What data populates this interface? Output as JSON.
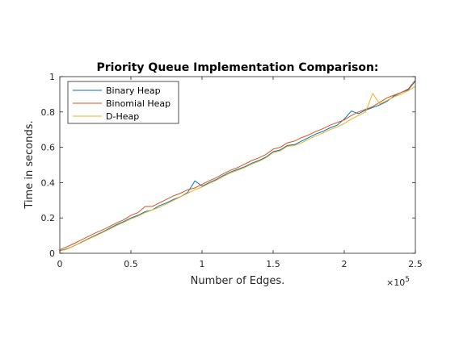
{
  "chart_data": {
    "type": "line",
    "title": "Priority Queue Implementation Comparison:",
    "xlabel": "Number of Edges.",
    "ylabel": "Time in seconds.",
    "x_multiplier_base": "×10",
    "x_multiplier_exp": "5",
    "xlim": [
      0,
      2.5
    ],
    "ylim": [
      0,
      1
    ],
    "xticks": [
      0,
      0.5,
      1,
      1.5,
      2,
      2.5
    ],
    "xtick_labels": [
      "0",
      "0.5",
      "1",
      "1.5",
      "2",
      "2.5"
    ],
    "yticks": [
      0,
      0.2,
      0.4,
      0.6,
      0.8,
      1
    ],
    "ytick_labels": [
      "0",
      "0.2",
      "0.4",
      "0.6",
      "0.8",
      "1"
    ],
    "legend_position": "top-left",
    "grid": false,
    "x": [
      0,
      0.05,
      0.1,
      0.15,
      0.2,
      0.25,
      0.3,
      0.35,
      0.4,
      0.45,
      0.5,
      0.55,
      0.6,
      0.65,
      0.7,
      0.75,
      0.8,
      0.85,
      0.9,
      0.95,
      1.0,
      1.05,
      1.1,
      1.15,
      1.2,
      1.25,
      1.3,
      1.35,
      1.4,
      1.45,
      1.5,
      1.55,
      1.6,
      1.65,
      1.7,
      1.75,
      1.8,
      1.85,
      1.9,
      1.95,
      2.0,
      2.05,
      2.1,
      2.15,
      2.2,
      2.25,
      2.3,
      2.35,
      2.4,
      2.45,
      2.5
    ],
    "series": [
      {
        "name": "Binary Heap",
        "color": "#0072bd",
        "values": [
          0.015,
          0.025,
          0.042,
          0.062,
          0.082,
          0.102,
          0.12,
          0.142,
          0.162,
          0.18,
          0.2,
          0.215,
          0.235,
          0.245,
          0.27,
          0.285,
          0.305,
          0.32,
          0.345,
          0.41,
          0.38,
          0.4,
          0.418,
          0.44,
          0.46,
          0.475,
          0.49,
          0.51,
          0.525,
          0.545,
          0.575,
          0.585,
          0.61,
          0.615,
          0.635,
          0.655,
          0.675,
          0.69,
          0.71,
          0.725,
          0.76,
          0.805,
          0.79,
          0.81,
          0.825,
          0.84,
          0.86,
          0.89,
          0.91,
          0.925,
          0.975
        ]
      },
      {
        "name": "Binomial Heap",
        "color": "#d95319",
        "values": [
          0.02,
          0.037,
          0.055,
          0.075,
          0.095,
          0.115,
          0.132,
          0.152,
          0.172,
          0.19,
          0.215,
          0.23,
          0.265,
          0.265,
          0.285,
          0.305,
          0.325,
          0.34,
          0.36,
          0.37,
          0.39,
          0.41,
          0.428,
          0.45,
          0.47,
          0.485,
          0.505,
          0.525,
          0.54,
          0.56,
          0.59,
          0.6,
          0.625,
          0.635,
          0.655,
          0.67,
          0.69,
          0.705,
          0.725,
          0.74,
          0.755,
          0.78,
          0.8,
          0.815,
          0.83,
          0.855,
          0.88,
          0.895,
          0.91,
          0.93,
          0.98
        ]
      },
      {
        "name": "D-Heap",
        "color": "#edb120",
        "values": [
          0.013,
          0.023,
          0.043,
          0.06,
          0.08,
          0.098,
          0.117,
          0.137,
          0.157,
          0.175,
          0.195,
          0.21,
          0.23,
          0.245,
          0.26,
          0.28,
          0.3,
          0.32,
          0.34,
          0.36,
          0.375,
          0.395,
          0.413,
          0.435,
          0.455,
          0.47,
          0.485,
          0.505,
          0.52,
          0.54,
          0.57,
          0.58,
          0.605,
          0.61,
          0.625,
          0.645,
          0.665,
          0.68,
          0.7,
          0.715,
          0.735,
          0.76,
          0.78,
          0.8,
          0.905,
          0.845,
          0.865,
          0.885,
          0.9,
          0.92,
          0.945
        ]
      }
    ]
  }
}
